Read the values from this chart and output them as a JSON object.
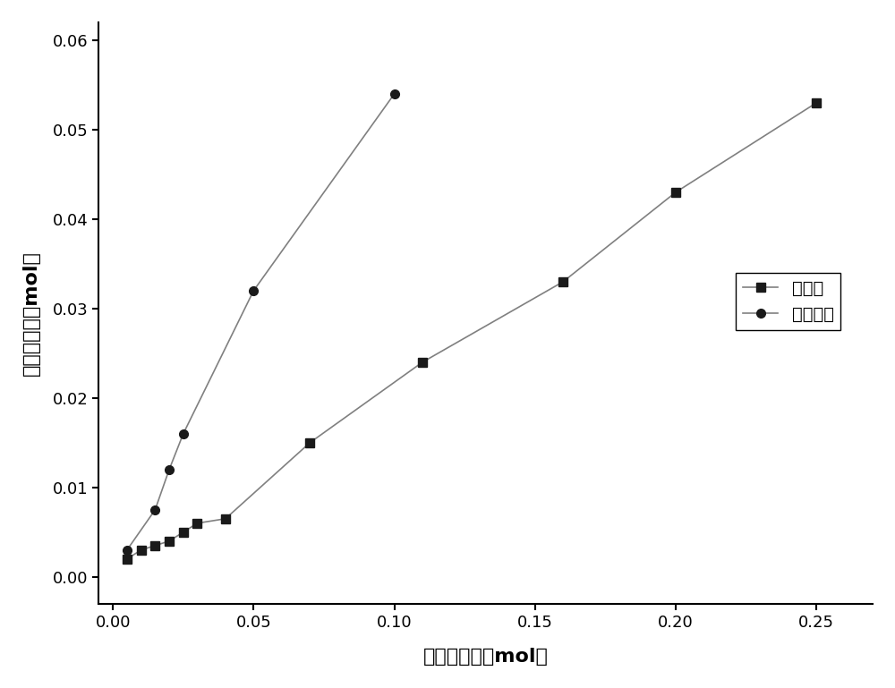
{
  "hf_x": [
    0.005,
    0.01,
    0.015,
    0.02,
    0.025,
    0.03,
    0.04,
    0.07,
    0.11,
    0.16,
    0.2,
    0.25
  ],
  "hf_y": [
    0.002,
    0.003,
    0.0035,
    0.004,
    0.005,
    0.006,
    0.0065,
    0.015,
    0.024,
    0.033,
    0.043,
    0.053
  ],
  "naoh_x": [
    0.005,
    0.015,
    0.02,
    0.025,
    0.05,
    0.1
  ],
  "naoh_y": [
    0.003,
    0.0075,
    0.012,
    0.016,
    0.032,
    0.054
  ],
  "xlabel": "浸出剂用量（mol）",
  "ylabel": "石英溶解量（mol）",
  "legend_hf": "氢氟酸",
  "legend_naoh": "氢氧化钓",
  "xlim": [
    -0.005,
    0.27
  ],
  "ylim": [
    -0.003,
    0.062
  ],
  "xticks": [
    0.0,
    0.05,
    0.1,
    0.15,
    0.2,
    0.25
  ],
  "yticks": [
    0.0,
    0.01,
    0.02,
    0.03,
    0.04,
    0.05,
    0.06
  ],
  "line_color": "#808080",
  "marker_color": "#1a1a1a",
  "bg_color": "#ffffff"
}
